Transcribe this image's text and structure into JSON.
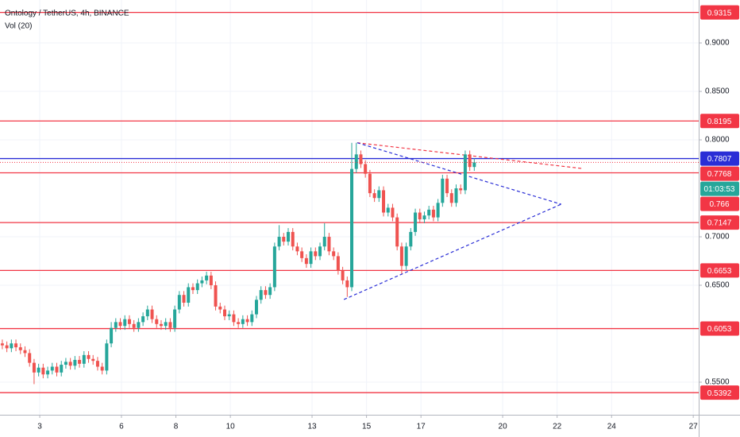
{
  "chart_data": {
    "type": "candlestick",
    "title": "Ontology / TetherUS, 4h, BINANCE",
    "subtitle": "Vol (20)",
    "up_color": "#26a69a",
    "down_color": "#ef5350",
    "grid": true,
    "xlim": [
      1.54,
      27.2
    ],
    "xticks": [
      3,
      6,
      8,
      10,
      13,
      15,
      17,
      20,
      22,
      24,
      27
    ],
    "ylim": [
      0.5164,
      0.9443
    ],
    "yticks": [
      {
        "value": 0.55,
        "label": "0.5500"
      },
      {
        "value": 0.65,
        "label": "0.6500"
      },
      {
        "value": 0.7,
        "label": "0.7000"
      },
      {
        "value": 0.8,
        "label": "0.8000"
      },
      {
        "value": 0.85,
        "label": "0.8500"
      },
      {
        "value": 0.9,
        "label": "0.9000"
      }
    ],
    "x": [
      1.625,
      1.792,
      1.958,
      2.125,
      2.292,
      2.458,
      2.625,
      2.792,
      2.958,
      3.125,
      3.292,
      3.458,
      3.625,
      3.792,
      3.958,
      4.125,
      4.292,
      4.458,
      4.625,
      4.792,
      4.958,
      5.125,
      5.292,
      5.458,
      5.625,
      5.792,
      5.958,
      6.125,
      6.292,
      6.458,
      6.625,
      6.792,
      6.958,
      7.125,
      7.292,
      7.458,
      7.625,
      7.792,
      7.958,
      8.125,
      8.292,
      8.458,
      8.625,
      8.792,
      8.958,
      9.125,
      9.292,
      9.458,
      9.625,
      9.792,
      9.958,
      10.125,
      10.292,
      10.458,
      10.625,
      10.792,
      10.958,
      11.125,
      11.292,
      11.458,
      11.625,
      11.792,
      11.958,
      12.125,
      12.292,
      12.458,
      12.625,
      12.792,
      12.958,
      13.125,
      13.292,
      13.458,
      13.625,
      13.792,
      13.958,
      14.125,
      14.292,
      14.458,
      14.625,
      14.792,
      14.958,
      15.125,
      15.292,
      15.458,
      15.625,
      15.792,
      15.958,
      16.125,
      16.292,
      16.458,
      16.625,
      16.792,
      16.958,
      17.125,
      17.292,
      17.458,
      17.625,
      17.792,
      17.958,
      18.125,
      18.292,
      18.458,
      18.625,
      18.792,
      18.958
    ],
    "open": [
      0.59,
      0.588,
      0.585,
      0.59,
      0.586,
      0.583,
      0.58,
      0.57,
      0.56,
      0.565,
      0.558,
      0.562,
      0.566,
      0.56,
      0.568,
      0.571,
      0.567,
      0.573,
      0.569,
      0.578,
      0.574,
      0.572,
      0.566,
      0.562,
      0.59,
      0.606,
      0.612,
      0.608,
      0.615,
      0.61,
      0.606,
      0.612,
      0.618,
      0.625,
      0.615,
      0.61,
      0.608,
      0.612,
      0.606,
      0.625,
      0.64,
      0.632,
      0.648,
      0.645,
      0.652,
      0.655,
      0.66,
      0.65,
      0.628,
      0.625,
      0.618,
      0.62,
      0.612,
      0.61,
      0.615,
      0.612,
      0.62,
      0.635,
      0.645,
      0.64,
      0.648,
      0.69,
      0.7,
      0.695,
      0.705,
      0.69,
      0.685,
      0.678,
      0.672,
      0.685,
      0.68,
      0.69,
      0.7,
      0.685,
      0.68,
      0.665,
      0.655,
      0.648,
      0.77,
      0.785,
      0.775,
      0.765,
      0.745,
      0.74,
      0.748,
      0.725,
      0.73,
      0.72,
      0.69,
      0.67,
      0.69,
      0.705,
      0.725,
      0.718,
      0.722,
      0.728,
      0.72,
      0.735,
      0.76,
      0.745,
      0.735,
      0.75,
      0.748,
      0.785,
      0.772
    ],
    "high": [
      0.594,
      0.592,
      0.594,
      0.594,
      0.59,
      0.587,
      0.584,
      0.574,
      0.569,
      0.569,
      0.566,
      0.57,
      0.57,
      0.572,
      0.575,
      0.575,
      0.577,
      0.577,
      0.582,
      0.582,
      0.578,
      0.576,
      0.57,
      0.594,
      0.612,
      0.616,
      0.616,
      0.619,
      0.619,
      0.614,
      0.616,
      0.622,
      0.629,
      0.629,
      0.619,
      0.614,
      0.616,
      0.616,
      0.629,
      0.644,
      0.644,
      0.652,
      0.652,
      0.656,
      0.659,
      0.664,
      0.664,
      0.654,
      0.632,
      0.629,
      0.624,
      0.624,
      0.616,
      0.619,
      0.619,
      0.624,
      0.639,
      0.649,
      0.649,
      0.652,
      0.694,
      0.712,
      0.704,
      0.709,
      0.709,
      0.694,
      0.689,
      0.682,
      0.689,
      0.689,
      0.694,
      0.714,
      0.704,
      0.689,
      0.684,
      0.669,
      0.659,
      0.797,
      0.797,
      0.789,
      0.779,
      0.769,
      0.749,
      0.752,
      0.752,
      0.734,
      0.734,
      0.724,
      0.694,
      0.694,
      0.709,
      0.729,
      0.729,
      0.726,
      0.732,
      0.732,
      0.739,
      0.764,
      0.764,
      0.749,
      0.754,
      0.754,
      0.789,
      0.789,
      0.781
    ],
    "low": [
      0.584,
      0.581,
      0.581,
      0.582,
      0.579,
      0.576,
      0.566,
      0.548,
      0.556,
      0.554,
      0.554,
      0.558,
      0.556,
      0.556,
      0.564,
      0.563,
      0.563,
      0.565,
      0.565,
      0.57,
      0.568,
      0.562,
      0.558,
      0.558,
      0.586,
      0.602,
      0.604,
      0.604,
      0.606,
      0.602,
      0.602,
      0.608,
      0.614,
      0.611,
      0.606,
      0.604,
      0.604,
      0.602,
      0.602,
      0.621,
      0.628,
      0.628,
      0.641,
      0.641,
      0.648,
      0.651,
      0.646,
      0.624,
      0.621,
      0.614,
      0.614,
      0.608,
      0.606,
      0.606,
      0.608,
      0.608,
      0.616,
      0.631,
      0.636,
      0.636,
      0.644,
      0.686,
      0.691,
      0.691,
      0.686,
      0.681,
      0.674,
      0.668,
      0.668,
      0.676,
      0.676,
      0.686,
      0.681,
      0.676,
      0.661,
      0.651,
      0.638,
      0.644,
      0.766,
      0.771,
      0.761,
      0.741,
      0.736,
      0.736,
      0.721,
      0.721,
      0.716,
      0.686,
      0.662,
      0.666,
      0.686,
      0.701,
      0.714,
      0.714,
      0.718,
      0.716,
      0.716,
      0.731,
      0.741,
      0.731,
      0.731,
      0.744,
      0.744,
      0.768,
      0.768
    ],
    "close": [
      0.588,
      0.585,
      0.59,
      0.586,
      0.583,
      0.58,
      0.57,
      0.56,
      0.565,
      0.558,
      0.562,
      0.566,
      0.56,
      0.568,
      0.571,
      0.567,
      0.573,
      0.569,
      0.578,
      0.574,
      0.572,
      0.566,
      0.562,
      0.59,
      0.606,
      0.612,
      0.608,
      0.615,
      0.61,
      0.606,
      0.612,
      0.618,
      0.625,
      0.615,
      0.61,
      0.608,
      0.612,
      0.606,
      0.625,
      0.64,
      0.632,
      0.648,
      0.645,
      0.652,
      0.655,
      0.66,
      0.65,
      0.628,
      0.625,
      0.618,
      0.62,
      0.612,
      0.61,
      0.615,
      0.612,
      0.62,
      0.635,
      0.645,
      0.64,
      0.648,
      0.69,
      0.7,
      0.695,
      0.705,
      0.69,
      0.685,
      0.678,
      0.672,
      0.685,
      0.68,
      0.69,
      0.7,
      0.685,
      0.68,
      0.665,
      0.655,
      0.648,
      0.77,
      0.785,
      0.775,
      0.765,
      0.745,
      0.74,
      0.748,
      0.725,
      0.73,
      0.72,
      0.69,
      0.67,
      0.69,
      0.705,
      0.725,
      0.718,
      0.722,
      0.728,
      0.72,
      0.735,
      0.76,
      0.745,
      0.735,
      0.75,
      0.748,
      0.785,
      0.772,
      0.7768
    ],
    "levels": [
      {
        "value": 0.9315,
        "color": "#f23645"
      },
      {
        "value": 0.8195,
        "color": "#f23645"
      },
      {
        "value": 0.7807,
        "color": "#2a2ed6"
      },
      {
        "value": 0.766,
        "color": "#f23645"
      },
      {
        "value": 0.7147,
        "color": "#f23645"
      },
      {
        "value": 0.6653,
        "color": "#f23645"
      },
      {
        "value": 0.6053,
        "color": "#f23645"
      },
      {
        "value": 0.5392,
        "color": "#f23645"
      }
    ],
    "current_price_color": "#f23645",
    "countdown": "01:03:53",
    "countdown_color": "#26a69a",
    "trendlines": [
      {
        "color": "#f23645",
        "x": [
          14.66,
          22.91
        ],
        "y": [
          0.797,
          0.7705
        ]
      },
      {
        "color": "#2a2ed6",
        "x": [
          14.66,
          22.15
        ],
        "y": [
          0.797,
          0.7336
        ]
      },
      {
        "color": "#2a2ed6",
        "x": [
          14.17,
          22.15
        ],
        "y": [
          0.6353,
          0.7336
        ]
      }
    ]
  }
}
